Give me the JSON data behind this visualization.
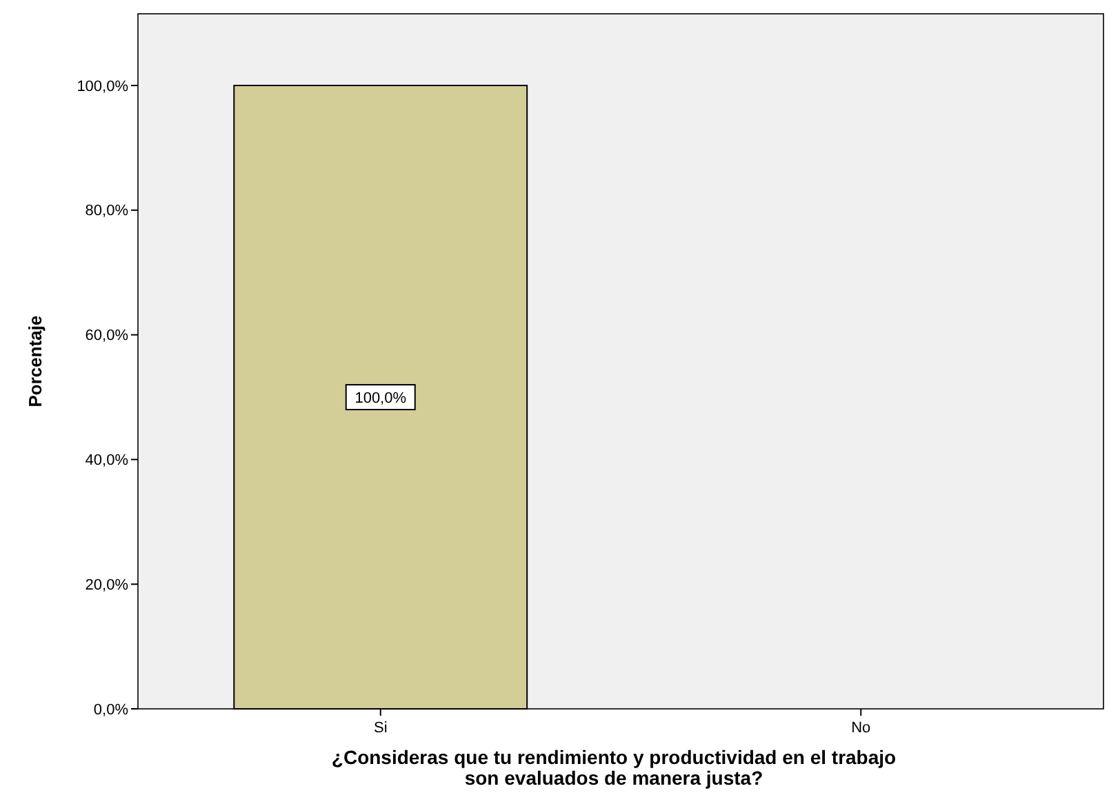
{
  "chart_data": {
    "type": "bar",
    "xlabel": "¿Consideras que tu rendimiento y productividad en el trabajo son evaluados de manera justa?",
    "ylabel": "Porcentaje",
    "categories": [
      "Si",
      "No"
    ],
    "values": [
      100,
      0
    ],
    "value_labels": [
      "100,0%",
      null
    ],
    "color": "#d3ce97",
    "ylim": [
      0,
      111.5
    ],
    "yticks": [
      {
        "value": 0,
        "label": "0,0%"
      },
      {
        "value": 20,
        "label": "20,0%"
      },
      {
        "value": 40,
        "label": "40,0%"
      },
      {
        "value": 60,
        "label": "60,0%"
      },
      {
        "value": 80,
        "label": "80,0%"
      },
      {
        "value": 100,
        "label": "100,0%"
      }
    ],
    "grid": false
  }
}
